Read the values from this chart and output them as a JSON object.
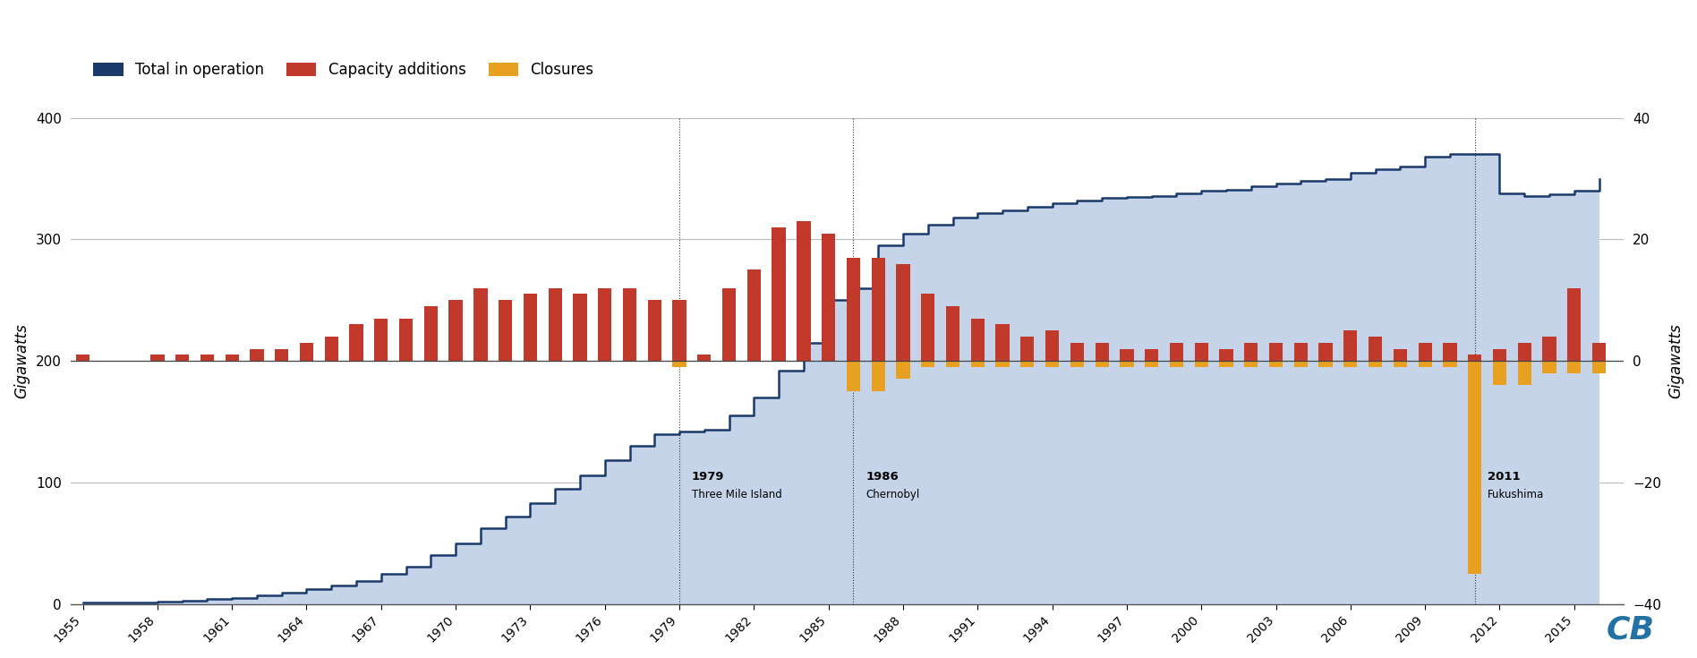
{
  "years": [
    1955,
    1956,
    1957,
    1958,
    1959,
    1960,
    1961,
    1962,
    1963,
    1964,
    1965,
    1966,
    1967,
    1968,
    1969,
    1970,
    1971,
    1972,
    1973,
    1974,
    1975,
    1976,
    1977,
    1978,
    1979,
    1980,
    1981,
    1982,
    1983,
    1984,
    1985,
    1986,
    1987,
    1988,
    1989,
    1990,
    1991,
    1992,
    1993,
    1994,
    1995,
    1996,
    1997,
    1998,
    1999,
    2000,
    2001,
    2002,
    2003,
    2004,
    2005,
    2006,
    2007,
    2008,
    2009,
    2010,
    2011,
    2012,
    2013,
    2014,
    2015,
    2016
  ],
  "total_in_operation": [
    1,
    1,
    1,
    2,
    3,
    4,
    5,
    7,
    9,
    12,
    15,
    19,
    25,
    31,
    40,
    50,
    62,
    72,
    83,
    95,
    106,
    118,
    130,
    140,
    142,
    143,
    155,
    170,
    192,
    215,
    250,
    260,
    295,
    305,
    312,
    318,
    322,
    324,
    327,
    330,
    332,
    334,
    335,
    336,
    338,
    340,
    341,
    344,
    346,
    348,
    350,
    355,
    358,
    360,
    368,
    370,
    370,
    338,
    336,
    337,
    340,
    350
  ],
  "capacity_additions": [
    1,
    0,
    0,
    1,
    1,
    1,
    1,
    2,
    2,
    3,
    4,
    6,
    7,
    7,
    9,
    10,
    12,
    10,
    11,
    12,
    11,
    12,
    12,
    10,
    10,
    1,
    12,
    15,
    22,
    23,
    21,
    17,
    17,
    16,
    11,
    9,
    7,
    6,
    4,
    5,
    3,
    3,
    2,
    2,
    3,
    3,
    2,
    3,
    3,
    3,
    3,
    5,
    4,
    2,
    3,
    3,
    1,
    2,
    3,
    4,
    12,
    3
  ],
  "closures": [
    0,
    0,
    0,
    0,
    0,
    0,
    0,
    0,
    0,
    0,
    0,
    0,
    0,
    0,
    0,
    0,
    0,
    0,
    0,
    0,
    0,
    0,
    0,
    0,
    -1,
    0,
    0,
    0,
    0,
    0,
    0,
    -5,
    -5,
    -3,
    -1,
    -1,
    -1,
    -1,
    -1,
    -1,
    -1,
    -1,
    -1,
    -1,
    -1,
    -1,
    -1,
    -1,
    -1,
    -1,
    -1,
    -1,
    -1,
    -1,
    -1,
    -1,
    -35,
    -4,
    -4,
    -2,
    -2,
    -2
  ],
  "background_color": "#ffffff",
  "area_fill_color": "#c5d4e8",
  "area_line_color": "#1a3a6b",
  "bar_additions_color": "#c0392b",
  "bar_closures_color": "#e8a020",
  "zero_line_color": "#444444",
  "grid_color": "#bbbbbb",
  "event_line_color": "#333333",
  "events": [
    {
      "year": 1979,
      "label1": "1979",
      "label2": "Three Mile Island"
    },
    {
      "year": 1986,
      "label1": "1986",
      "label2": "Chernobyl"
    },
    {
      "year": 2011,
      "label1": "2011",
      "label2": "Fukushima"
    }
  ],
  "ylabel_left": "Gigawatts",
  "ylabel_right": "Gigawatts",
  "ylim_left": [
    0,
    400
  ],
  "ylim_right": [
    -40,
    40
  ],
  "yticks_left": [
    0,
    100,
    200,
    300,
    400
  ],
  "yticks_right": [
    -40,
    -20,
    0,
    20,
    40
  ],
  "legend_labels": [
    "Total in operation",
    "Capacity additions",
    "Closures"
  ],
  "legend_colors": [
    "#1a3a6b",
    "#c0392b",
    "#e8a020"
  ],
  "watermark": "CB",
  "watermark_color": "#2471a3"
}
